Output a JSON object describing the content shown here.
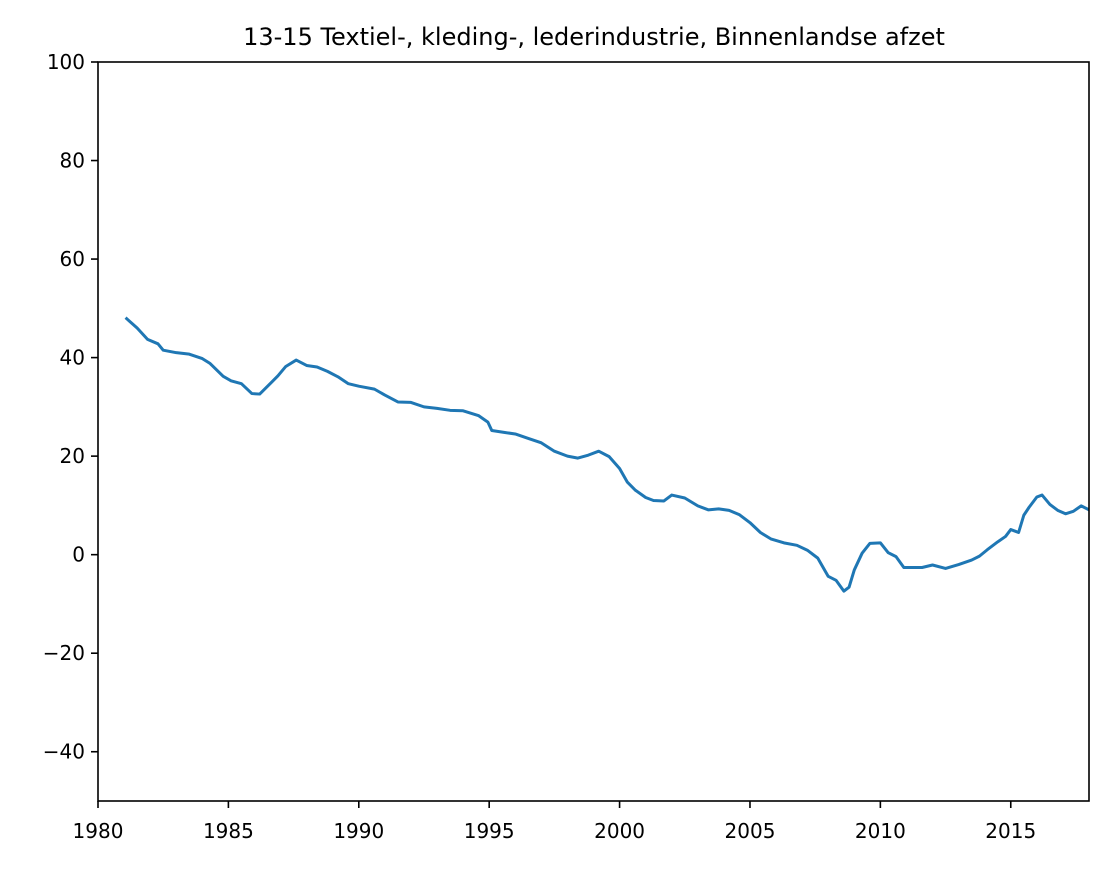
{
  "chart_data": {
    "type": "line",
    "title": "13-15 Textiel-, kleding-, lederindustrie, Binnenlandse afzet",
    "xlabel": "",
    "ylabel": "",
    "xlim": [
      1980,
      2018
    ],
    "ylim": [
      -50,
      100
    ],
    "xticks": [
      1980,
      1985,
      1990,
      1995,
      2000,
      2005,
      2010,
      2015
    ],
    "xtick_labels": [
      "1980",
      "1985",
      "1990",
      "1995",
      "2000",
      "2005",
      "2010",
      "2015"
    ],
    "yticks": [
      -40,
      -20,
      0,
      20,
      40,
      60,
      80,
      100
    ],
    "ytick_labels": [
      "−40",
      "−20",
      "0",
      "20",
      "40",
      "60",
      "80",
      "100"
    ],
    "grid": false,
    "series": [
      {
        "color": "#1f77b4",
        "x": [
          1981.1,
          1981.5,
          1981.9,
          1982.3,
          1982.5,
          1983.0,
          1983.5,
          1984.0,
          1984.3,
          1984.8,
          1985.1,
          1985.5,
          1985.9,
          1986.2,
          1986.6,
          1986.9,
          1987.2,
          1987.6,
          1988.0,
          1988.4,
          1988.8,
          1989.2,
          1989.6,
          1990.0,
          1990.6,
          1991.0,
          1991.5,
          1992.0,
          1992.5,
          1993.0,
          1993.5,
          1994.0,
          1994.6,
          1994.95,
          1995.1,
          1995.6,
          1996.0,
          1996.5,
          1997.0,
          1997.5,
          1998.0,
          1998.4,
          1998.8,
          1999.2,
          1999.6,
          2000.0,
          2000.3,
          2000.6,
          2001.0,
          2001.3,
          2001.7,
          2002.0,
          2002.5,
          2003.0,
          2003.4,
          2003.8,
          2004.2,
          2004.6,
          2005.0,
          2005.4,
          2005.8,
          2006.3,
          2006.8,
          2007.2,
          2007.6,
          2008.0,
          2008.3,
          2008.6,
          2008.8,
          2009.0,
          2009.3,
          2009.6,
          2010.0,
          2010.3,
          2010.6,
          2010.9,
          2011.2,
          2011.6,
          2012.0,
          2012.5,
          2013.0,
          2013.5,
          2013.8,
          2014.1,
          2014.5,
          2014.8,
          2015.0,
          2015.3,
          2015.5,
          2015.7,
          2016.0,
          2016.2,
          2016.5,
          2016.8,
          2017.1,
          2017.4,
          2017.7,
          2018.0
        ],
        "values": [
          47.9,
          46.0,
          43.7,
          42.8,
          41.5,
          41.0,
          40.7,
          39.8,
          38.8,
          36.2,
          35.3,
          34.7,
          32.7,
          32.6,
          34.7,
          36.3,
          38.2,
          39.5,
          38.4,
          38.1,
          37.2,
          36.1,
          34.7,
          34.2,
          33.6,
          32.4,
          31.0,
          30.9,
          30.0,
          29.7,
          29.3,
          29.2,
          28.2,
          26.9,
          25.2,
          24.8,
          24.5,
          23.6,
          22.7,
          21.0,
          20.0,
          19.6,
          20.2,
          21.0,
          19.9,
          17.5,
          14.7,
          13.1,
          11.6,
          11.0,
          10.9,
          12.1,
          11.5,
          9.9,
          9.1,
          9.3,
          9.0,
          8.1,
          6.5,
          4.5,
          3.2,
          2.4,
          1.9,
          0.9,
          -0.7,
          -4.4,
          -5.2,
          -7.4,
          -6.6,
          -3.1,
          0.3,
          2.3,
          2.4,
          0.4,
          -0.4,
          -2.6,
          -2.6,
          -2.6,
          -2.1,
          -2.8,
          -2.0,
          -1.1,
          -0.3,
          1.0,
          2.6,
          3.7,
          5.1,
          4.5,
          8.0,
          9.6,
          11.7,
          12.1,
          10.2,
          9.0,
          8.3,
          8.8,
          9.9,
          9.1
        ]
      }
    ]
  }
}
